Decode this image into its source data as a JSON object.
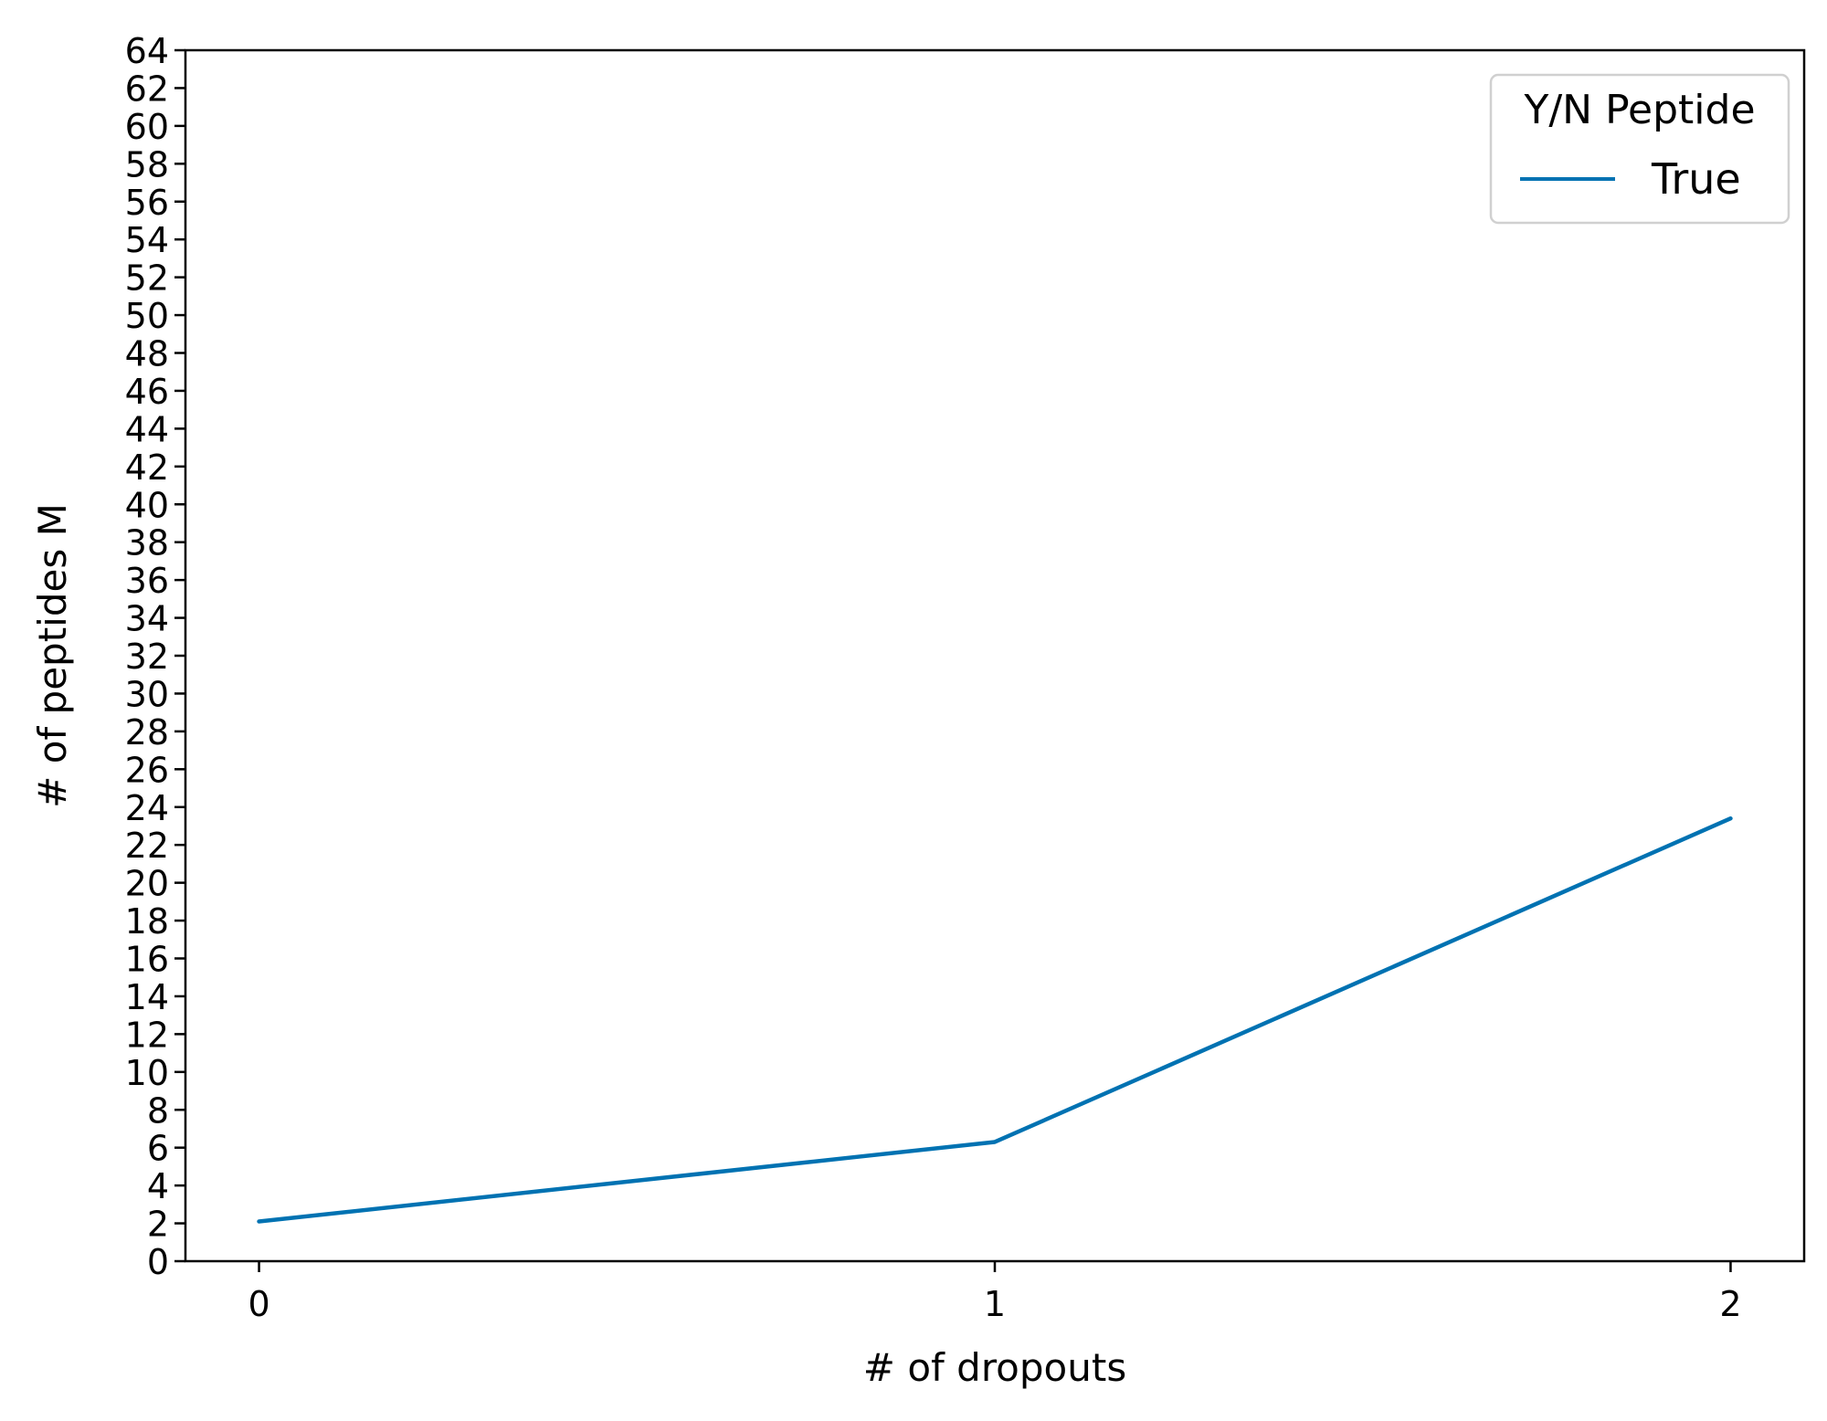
{
  "chart_data": {
    "type": "line",
    "x": [
      0,
      1,
      2
    ],
    "xticks": [
      "0",
      "1",
      "2"
    ],
    "xlim": [
      -0.1,
      2.1
    ],
    "ylim": [
      0,
      64
    ],
    "yticks": [
      0,
      2,
      4,
      6,
      8,
      10,
      12,
      14,
      16,
      18,
      20,
      22,
      24,
      26,
      28,
      30,
      32,
      34,
      36,
      38,
      40,
      42,
      44,
      46,
      48,
      50,
      52,
      54,
      56,
      58,
      60,
      62,
      64
    ],
    "series": [
      {
        "name": "True",
        "values": [
          2.1,
          6.3,
          23.4
        ],
        "color": "#0072b2"
      }
    ],
    "xlabel": "# of dropouts",
    "ylabel": "# of peptides M",
    "title": "",
    "legend": {
      "title": "Y/N Peptide",
      "placement": "top-right"
    },
    "grid": false
  }
}
